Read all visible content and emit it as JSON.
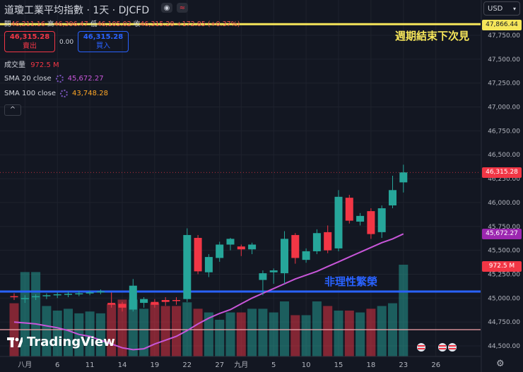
{
  "header": {
    "title": "道瓊工業平均指數 · 1天 · DJCFD",
    "ohlc": {
      "open_label": "開",
      "open": "46,211.16",
      "high_label": "高",
      "high": "46,396.47",
      "low_label": "低",
      "low": "46,105.02",
      "close_label": "收",
      "close": "46,315.28",
      "change": "+172.85 (+0.37%)"
    },
    "sell": {
      "price": "46,315.28",
      "label": "賣出"
    },
    "buy": {
      "price": "46,315.28",
      "label": "買入"
    },
    "spread": "0.00",
    "volume": {
      "label": "成交量",
      "value": "972.5 M"
    },
    "sma20": {
      "label": "SMA 20 close",
      "value": "45,672.27"
    },
    "sma100": {
      "label": "SMA 100 close",
      "value": "43,748.28"
    },
    "collapse_symbol": "^",
    "currency": "USD",
    "logo_text": "TradingView"
  },
  "annotations": {
    "weekend_text": "週期結束下次見",
    "irrational_text": "非理性繁榮",
    "yellow_line_value": "47,866.44",
    "last_price": "46,315.28",
    "sma20_tag": "45,672.27",
    "volume_tag": "972.5 M"
  },
  "colors": {
    "up": "#26a69a",
    "down": "#f23645",
    "background": "#131722",
    "sma20": "#c856d9",
    "sma100": "#ffa726",
    "yellow_line": "#f6e65a",
    "blue_line": "#2962ff"
  },
  "chart_data": {
    "type": "candlestick",
    "y_ticks": [
      "47,750.00",
      "47,500.00",
      "47,250.00",
      "47,000.00",
      "46,750.00",
      "46,500.00",
      "46,250.00",
      "46,000.00",
      "45,750.00",
      "45,500.00",
      "45,250.00",
      "45,000.00",
      "44,750.00",
      "44,500.00"
    ],
    "ylim": [
      44450,
      47950
    ],
    "x_ticks": [
      {
        "label": "八月",
        "i": 1
      },
      {
        "label": "6",
        "i": 4
      },
      {
        "label": "11",
        "i": 7
      },
      {
        "label": "14",
        "i": 10
      },
      {
        "label": "19",
        "i": 13
      },
      {
        "label": "22",
        "i": 16
      },
      {
        "label": "27",
        "i": 19
      },
      {
        "label": "九月",
        "i": 21
      },
      {
        "label": "5",
        "i": 24
      },
      {
        "label": "10",
        "i": 27
      },
      {
        "label": "15",
        "i": 30
      },
      {
        "label": "18",
        "i": 33
      },
      {
        "label": "23",
        "i": 36
      },
      {
        "label": "26",
        "i": 39
      }
    ],
    "candles": [
      {
        "o": 45020,
        "h": 45050,
        "l": 44980,
        "c": 45010
      },
      {
        "o": 44990,
        "h": 45030,
        "l": 44950,
        "c": 45000
      },
      {
        "o": 45010,
        "h": 45040,
        "l": 44980,
        "c": 45020
      },
      {
        "o": 45020,
        "h": 45050,
        "l": 44990,
        "c": 45030
      },
      {
        "o": 45030,
        "h": 45060,
        "l": 45000,
        "c": 45040
      },
      {
        "o": 45040,
        "h": 45070,
        "l": 45010,
        "c": 45045
      },
      {
        "o": 45045,
        "h": 45075,
        "l": 45020,
        "c": 45050
      },
      {
        "o": 45050,
        "h": 45080,
        "l": 45030,
        "c": 45060
      },
      {
        "o": 45060,
        "h": 45090,
        "l": 45040,
        "c": 45070
      },
      {
        "o": 44950,
        "h": 45060,
        "l": 44900,
        "c": 44930
      },
      {
        "o": 44940,
        "h": 44960,
        "l": 44860,
        "c": 44900
      },
      {
        "o": 44880,
        "h": 45200,
        "l": 44860,
        "c": 45130
      },
      {
        "o": 44950,
        "h": 45010,
        "l": 44900,
        "c": 44990
      },
      {
        "o": 44960,
        "h": 44990,
        "l": 44900,
        "c": 44930
      },
      {
        "o": 44980,
        "h": 45010,
        "l": 44920,
        "c": 44960
      },
      {
        "o": 44980,
        "h": 45010,
        "l": 44930,
        "c": 44970
      },
      {
        "o": 44990,
        "h": 45730,
        "l": 44960,
        "c": 45660
      },
      {
        "o": 45630,
        "h": 45660,
        "l": 45250,
        "c": 45280
      },
      {
        "o": 45270,
        "h": 45460,
        "l": 45220,
        "c": 45430
      },
      {
        "o": 45420,
        "h": 45590,
        "l": 45380,
        "c": 45560
      },
      {
        "o": 45560,
        "h": 45630,
        "l": 45500,
        "c": 45620
      },
      {
        "o": 45540,
        "h": 45560,
        "l": 45440,
        "c": 45510
      },
      {
        "o": 45510,
        "h": 45580,
        "l": 45460,
        "c": 45560
      },
      {
        "o": 45190,
        "h": 45290,
        "l": 45030,
        "c": 45260
      },
      {
        "o": 45270,
        "h": 45310,
        "l": 45150,
        "c": 45290
      },
      {
        "o": 45260,
        "h": 45700,
        "l": 45150,
        "c": 45620
      },
      {
        "o": 45660,
        "h": 45680,
        "l": 45360,
        "c": 45420
      },
      {
        "o": 45400,
        "h": 45520,
        "l": 45370,
        "c": 45490
      },
      {
        "o": 45490,
        "h": 45720,
        "l": 45460,
        "c": 45680
      },
      {
        "o": 45690,
        "h": 45760,
        "l": 45470,
        "c": 45500
      },
      {
        "o": 45520,
        "h": 46130,
        "l": 45490,
        "c": 46060
      },
      {
        "o": 46050,
        "h": 46080,
        "l": 45780,
        "c": 45810
      },
      {
        "o": 45800,
        "h": 45890,
        "l": 45760,
        "c": 45860
      },
      {
        "o": 45910,
        "h": 45940,
        "l": 45620,
        "c": 45670
      },
      {
        "o": 45690,
        "h": 45970,
        "l": 45630,
        "c": 45940
      },
      {
        "o": 45970,
        "h": 46280,
        "l": 45940,
        "c": 46130
      },
      {
        "o": 46211,
        "h": 46396,
        "l": 46105,
        "c": 46315
      }
    ],
    "volume_bars": [
      0.58,
      0.92,
      0.92,
      0.55,
      0.5,
      0.52,
      0.47,
      0.49,
      0.47,
      0.57,
      0.62,
      0.62,
      0.52,
      0.58,
      0.55,
      0.55,
      0.59,
      0.52,
      0.48,
      0.4,
      0.48,
      0.48,
      0.52,
      0.52,
      0.48,
      0.6,
      0.45,
      0.45,
      0.6,
      0.55,
      0.5,
      0.5,
      0.48,
      0.52,
      0.55,
      0.58,
      1.0
    ],
    "sma20": [
      44750,
      44740,
      44730,
      44710,
      44690,
      44660,
      44620,
      44600,
      44560,
      44520,
      44480,
      44460,
      44470,
      44520,
      44560,
      44600,
      44660,
      44730,
      44790,
      44840,
      44880,
      44940,
      45000,
      45050,
      45100,
      45150,
      45200,
      45240,
      45280,
      45330,
      45380,
      45430,
      45480,
      45530,
      45580,
      45620,
      45672
    ],
    "volume_tag_ratio": 1.0
  }
}
